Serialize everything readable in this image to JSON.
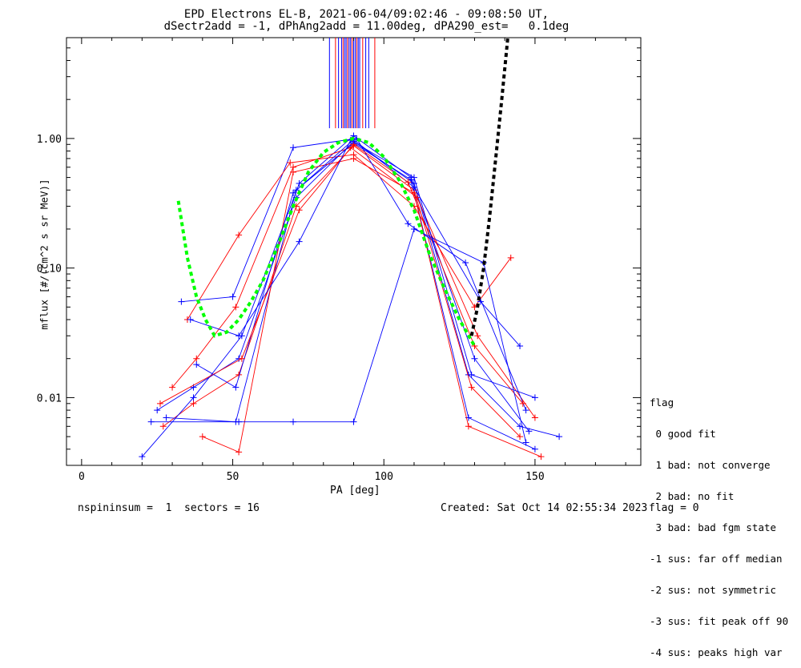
{
  "title": {
    "line1": "EPD Electrons EL-B, 2021-06-04/09:02:46 - 09:08:50 UT,",
    "line2": "dSectr2add = -1, dPhAng2add = 11.00deg, dPA290_est=   0.1deg"
  },
  "footer": {
    "left": "nspininsum =  1  sectors = 16",
    "created": "Created: Sat Oct 14 02:55:34 2023",
    "flag": "flag = 0"
  },
  "legend": {
    "title": "flag",
    "items": [
      " 0 good fit",
      " 1 bad: not converge",
      " 2 bad: no fit",
      " 3 bad: bad fgm state",
      "-1 sus: far off median",
      "-2 sus: not symmetric",
      "-3 sus: fit peak off 90",
      "-4 sus: peaks high var"
    ]
  },
  "chart_data": {
    "type": "line",
    "xlabel": "PA [deg]",
    "ylabel": "mflux [#/(cm^2 s sr MeV)]",
    "xlim": [
      -5,
      185
    ],
    "ylim": [
      0.003,
      6
    ],
    "yscale": "log",
    "xticks": [
      0,
      50,
      100,
      150
    ],
    "xtick_labels": [
      "0",
      "50",
      "100",
      "150"
    ],
    "yticks": [
      0.01,
      0.1,
      1.0
    ],
    "ytick_labels": [
      "0.01",
      "0.10",
      "1.00"
    ],
    "colors": {
      "blue": "#0000ff",
      "red": "#ff0000",
      "green": "#00ff00",
      "black": "#000000"
    },
    "representative_series": [
      {
        "color": "blue",
        "x": [
          25,
          37,
          52,
          71,
          90,
          110,
          128,
          145,
          158
        ],
        "y": [
          0.008,
          0.012,
          0.02,
          0.35,
          0.95,
          0.45,
          0.015,
          0.006,
          0.005
        ]
      },
      {
        "color": "red",
        "x": [
          27,
          37,
          52,
          71,
          90,
          110,
          129,
          145
        ],
        "y": [
          0.006,
          0.009,
          0.015,
          0.3,
          0.88,
          0.4,
          0.012,
          0.005
        ]
      },
      {
        "color": "blue",
        "x": [
          20,
          37,
          53,
          72,
          90,
          109,
          130,
          148
        ],
        "y": [
          0.0035,
          0.01,
          0.03,
          0.45,
          1.05,
          0.5,
          0.02,
          0.0055
        ]
      },
      {
        "color": "red",
        "x": [
          30,
          38,
          51,
          70,
          89,
          111,
          131,
          150
        ],
        "y": [
          0.012,
          0.02,
          0.05,
          0.6,
          0.85,
          0.35,
          0.03,
          0.007
        ]
      },
      {
        "color": "blue",
        "x": [
          33,
          50,
          70,
          91,
          108,
          127,
          147
        ],
        "y": [
          0.055,
          0.06,
          0.85,
          1.0,
          0.22,
          0.11,
          0.008
        ]
      },
      {
        "color": "red",
        "x": [
          35,
          52,
          69,
          90,
          110,
          130,
          142
        ],
        "y": [
          0.04,
          0.18,
          0.65,
          0.75,
          0.3,
          0.05,
          0.12
        ]
      },
      {
        "color": "blue",
        "x": [
          28,
          51,
          71,
          90,
          109,
          128,
          150
        ],
        "y": [
          0.007,
          0.0065,
          0.4,
          0.92,
          0.48,
          0.007,
          0.004
        ]
      },
      {
        "color": "red",
        "x": [
          40,
          52,
          70,
          90,
          110,
          128,
          152
        ],
        "y": [
          0.005,
          0.0038,
          0.55,
          0.7,
          0.38,
          0.006,
          0.0035
        ]
      },
      {
        "color": "blue",
        "x": [
          38,
          51,
          70,
          90,
          110,
          132,
          145
        ],
        "y": [
          0.018,
          0.012,
          0.38,
          0.98,
          0.42,
          0.055,
          0.025
        ]
      },
      {
        "color": "red",
        "x": [
          26,
          53,
          72,
          90,
          108,
          130,
          146
        ],
        "y": [
          0.009,
          0.02,
          0.28,
          0.9,
          0.46,
          0.025,
          0.009
        ]
      },
      {
        "color": "blue",
        "x": [
          23,
          52,
          70,
          90,
          110,
          133,
          147
        ],
        "y": [
          0.0065,
          0.0065,
          0.0065,
          0.0065,
          0.2,
          0.11,
          0.0045
        ]
      },
      {
        "color": "blue",
        "x": [
          36,
          52,
          72,
          89,
          110,
          129,
          150
        ],
        "y": [
          0.04,
          0.03,
          0.16,
          0.97,
          0.5,
          0.015,
          0.01
        ]
      }
    ],
    "green_fit": {
      "x": [
        32,
        35,
        38,
        41,
        44,
        48,
        52,
        56,
        60,
        65,
        70,
        75,
        80,
        85,
        90,
        95,
        100,
        105,
        110,
        115,
        120,
        125,
        130
      ],
      "y": [
        0.33,
        0.12,
        0.06,
        0.04,
        0.03,
        0.032,
        0.04,
        0.055,
        0.08,
        0.15,
        0.3,
        0.55,
        0.78,
        0.93,
        1.0,
        0.93,
        0.72,
        0.48,
        0.28,
        0.13,
        0.07,
        0.04,
        0.025
      ]
    },
    "black_fit": {
      "x": [
        129,
        131,
        133,
        135,
        137,
        139,
        141
      ],
      "y": [
        0.03,
        0.05,
        0.1,
        0.25,
        0.7,
        2.0,
        6.0
      ]
    },
    "vertical_lines_x": [
      82,
      84,
      85,
      86,
      86.5,
      87,
      87.5,
      88,
      88.5,
      89,
      89.5,
      90,
      90.5,
      91,
      91.5,
      92,
      93,
      94,
      95,
      97
    ],
    "vertical_lines_range": [
      1.2,
      6
    ]
  }
}
